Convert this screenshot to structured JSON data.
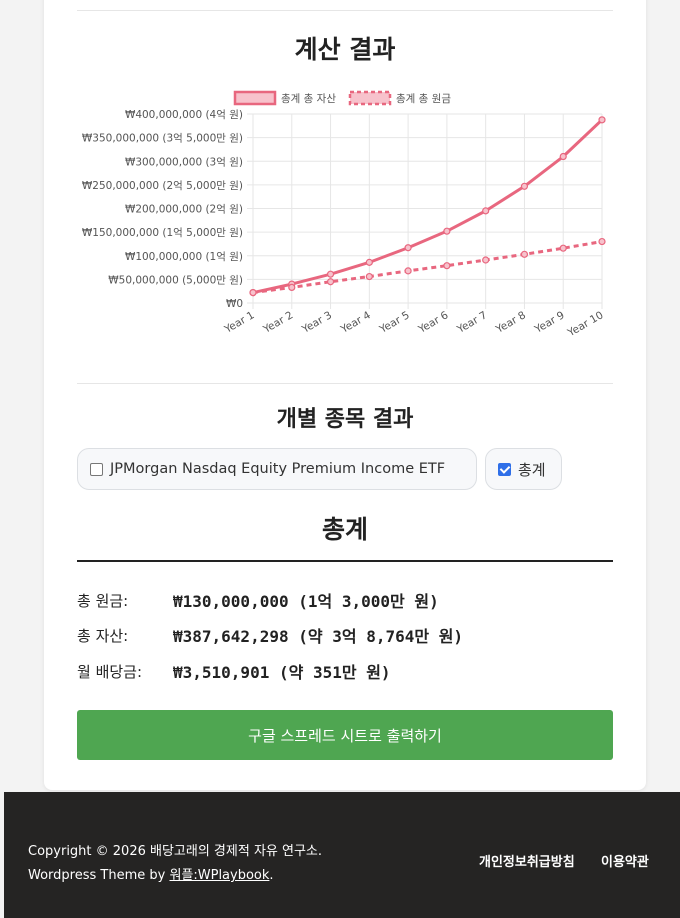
{
  "results": {
    "title": "계산 결과",
    "individual_title": "개별 종목 결과",
    "summary_title": "총계"
  },
  "chart_data": {
    "type": "line",
    "x": [
      "Year 1",
      "Year 2",
      "Year 3",
      "Year 4",
      "Year 5",
      "Year 6",
      "Year 7",
      "Year 8",
      "Year 9",
      "Year 10"
    ],
    "series": [
      {
        "name": "총계 총 자산",
        "style": "solid",
        "color": "#e8677f",
        "values": [
          22000000,
          40000000,
          61000000,
          86000000,
          117000000,
          152000000,
          195000000,
          247000000,
          310000000,
          387642298
        ]
      },
      {
        "name": "총계 총 원금",
        "style": "dashed",
        "color": "#e8677f",
        "values": [
          22000000,
          33000000,
          45000000,
          56000000,
          68000000,
          79000000,
          91000000,
          103000000,
          116000000,
          130000000
        ]
      }
    ],
    "ylim": [
      0,
      400000000
    ],
    "yticks": [
      {
        "value": 0,
        "label": "₩0"
      },
      {
        "value": 50000000,
        "label": "₩50,000,000 (5,000만 원)"
      },
      {
        "value": 100000000,
        "label": "₩100,000,000 (1억  원)"
      },
      {
        "value": 150000000,
        "label": "₩150,000,000 (1억 5,000만 원)"
      },
      {
        "value": 200000000,
        "label": "₩200,000,000 (2억  원)"
      },
      {
        "value": 250000000,
        "label": "₩250,000,000 (2억 5,000만 원)"
      },
      {
        "value": 300000000,
        "label": "₩300,000,000 (3억  원)"
      },
      {
        "value": 350000000,
        "label": "₩350,000,000 (3억 5,000만 원)"
      },
      {
        "value": 400000000,
        "label": "₩400,000,000 (4억  원)"
      }
    ],
    "grid": true,
    "legend": "top-center"
  },
  "filters": {
    "etf_label": "JPMorgan Nasdaq Equity Premium Income ETF",
    "etf_checked": false,
    "total_label": "총계",
    "total_checked": true
  },
  "summary": {
    "principal_label": "총 원금:",
    "principal_value": "₩130,000,000 (1억 3,000만 원)",
    "assets_label": "총 자산:",
    "assets_value": "₩387,642,298 (약 3억 8,764만 원)",
    "dividend_label": "월 배당금:",
    "dividend_value": "₩3,510,901 (약 351만 원)"
  },
  "export_button": "구글 스프레드 시트로 출력하기",
  "footer": {
    "copyright": "Copyright © 2026 배당고래의 경제적 자유 연구소.",
    "theme_prefix": "Wordpress Theme by ",
    "theme_link": "워플:WPlaybook",
    "theme_suffix": ".",
    "privacy": "개인정보취급방침",
    "terms": "이용약관"
  }
}
